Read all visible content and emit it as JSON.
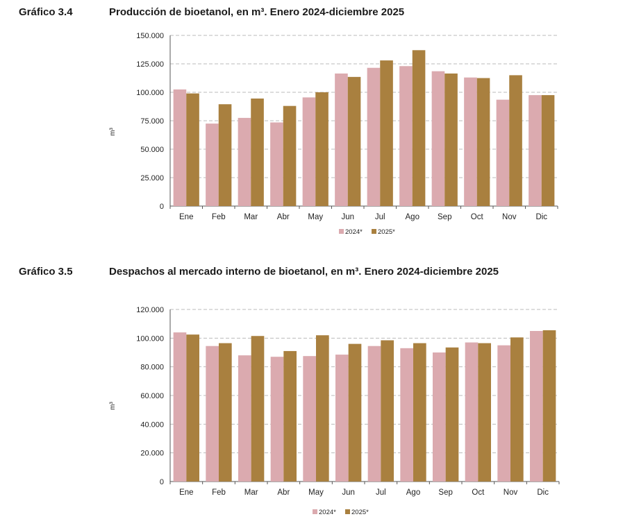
{
  "charts": [
    {
      "fig_label": "Gráfico 3.4",
      "title": "Producción de bioetanol, en m³. Enero 2024-diciembre 2025"
    },
    {
      "fig_label": "Gráfico 3.5",
      "title": "Despachos al mercado interno de bioetanol, en m³. Enero 2024-diciembre 2025"
    }
  ],
  "colors": {
    "series_2024": "#dbaaaf",
    "series_2025": "#a9803f",
    "grid": "#bbbbbb",
    "axis": "#555555"
  },
  "chart_data": [
    {
      "type": "bar",
      "title": "Producción de bioetanol, en m³. Enero 2024-diciembre 2025",
      "ylabel": "m³",
      "xlabel": "",
      "categories": [
        "Ene",
        "Feb",
        "Mar",
        "Abr",
        "May",
        "Jun",
        "Jul",
        "Ago",
        "Sep",
        "Oct",
        "Nov",
        "Dic"
      ],
      "series": [
        {
          "name": "2024*",
          "values": [
            102500,
            72500,
            77500,
            73500,
            95500,
            116500,
            121500,
            123000,
            118500,
            113000,
            93500,
            97500
          ]
        },
        {
          "name": "2025*",
          "values": [
            99000,
            89500,
            94500,
            88000,
            100000,
            113500,
            128000,
            137000,
            116500,
            112500,
            115000,
            97500
          ]
        }
      ],
      "ylim": [
        0,
        150000
      ],
      "yticks": [
        0,
        25000,
        50000,
        75000,
        100000,
        125000,
        150000
      ],
      "ytick_labels": [
        "0",
        "25.000",
        "50.000",
        "75.000",
        "100.000",
        "125.000",
        "150.000"
      ],
      "grid": true,
      "legend": "bottom"
    },
    {
      "type": "bar",
      "title": "Despachos al mercado interno de bioetanol, en m³. Enero 2024-diciembre 2025",
      "ylabel": "m³",
      "xlabel": "",
      "categories": [
        "Ene",
        "Feb",
        "Mar",
        "Abr",
        "May",
        "Jun",
        "Jul",
        "Ago",
        "Sep",
        "Oct",
        "Nov",
        "Dic"
      ],
      "series": [
        {
          "name": "2024*",
          "values": [
            104000,
            94500,
            88000,
            87000,
            87500,
            88500,
            94500,
            93000,
            90000,
            97000,
            95000,
            105000
          ]
        },
        {
          "name": "2025*",
          "values": [
            102500,
            96500,
            101500,
            91000,
            102000,
            96000,
            98500,
            96500,
            93500,
            96500,
            100500,
            105500
          ]
        }
      ],
      "ylim": [
        0,
        120000
      ],
      "yticks": [
        0,
        20000,
        40000,
        60000,
        80000,
        100000,
        120000
      ],
      "ytick_labels": [
        "0",
        "20.000",
        "40.000",
        "60.000",
        "80.000",
        "100.000",
        "120.000"
      ],
      "grid": true,
      "legend": "bottom"
    }
  ]
}
